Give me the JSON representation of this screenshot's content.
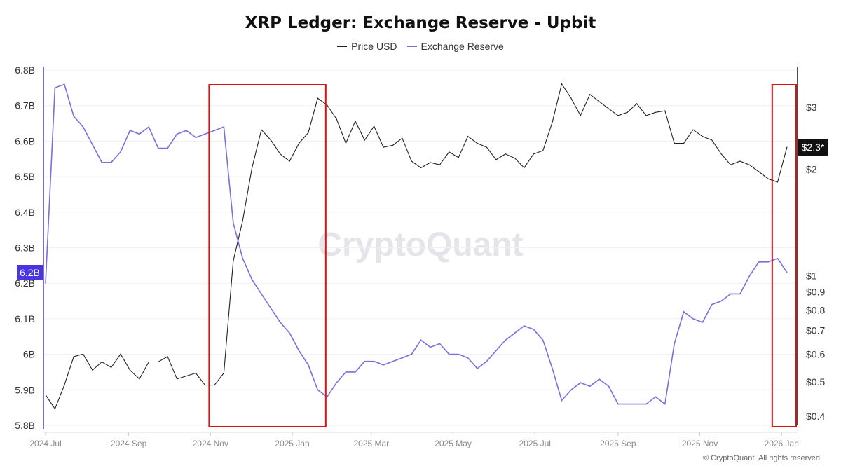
{
  "chart_data": {
    "type": "line",
    "title": "XRP Ledger: Exchange Reserve - Upbit",
    "watermark": "CryptoQuant",
    "copyright": "© CryptoQuant. All rights reserved",
    "legend_position": "top-center",
    "grid": true,
    "x": [
      "2024-07-01",
      "2024-07-08",
      "2024-07-15",
      "2024-07-22",
      "2024-07-29",
      "2024-08-05",
      "2024-08-12",
      "2024-08-19",
      "2024-08-26",
      "2024-09-02",
      "2024-09-09",
      "2024-09-16",
      "2024-09-23",
      "2024-09-30",
      "2024-10-07",
      "2024-10-14",
      "2024-10-21",
      "2024-10-28",
      "2024-11-04",
      "2024-11-11",
      "2024-11-18",
      "2024-11-25",
      "2024-12-02",
      "2024-12-09",
      "2024-12-16",
      "2024-12-23",
      "2024-12-30",
      "2025-01-06",
      "2025-01-13",
      "2025-01-20",
      "2025-01-27",
      "2025-02-03",
      "2025-02-10",
      "2025-02-17",
      "2025-02-24",
      "2025-03-03",
      "2025-03-10",
      "2025-03-17",
      "2025-03-24",
      "2025-03-31",
      "2025-04-07",
      "2025-04-14",
      "2025-04-21",
      "2025-04-28",
      "2025-05-05",
      "2025-05-12",
      "2025-05-19",
      "2025-05-26",
      "2025-06-02",
      "2025-06-09",
      "2025-06-16",
      "2025-06-23",
      "2025-06-30",
      "2025-07-07",
      "2025-07-14",
      "2025-07-21",
      "2025-07-28",
      "2025-08-04",
      "2025-08-11",
      "2025-08-18",
      "2025-08-25",
      "2025-09-01",
      "2025-09-08",
      "2025-09-15",
      "2025-09-22",
      "2025-09-29",
      "2025-10-06",
      "2025-10-13",
      "2025-10-20",
      "2025-10-27",
      "2025-11-03",
      "2025-11-10",
      "2025-11-17",
      "2025-11-24",
      "2025-12-01",
      "2025-12-08",
      "2025-12-15",
      "2025-12-22",
      "2025-12-29",
      "2026-01-05"
    ],
    "series": [
      {
        "name": "Price USD",
        "axis": "right",
        "color": "#222222",
        "values": [
          0.46,
          0.42,
          0.49,
          0.59,
          0.6,
          0.54,
          0.57,
          0.55,
          0.6,
          0.54,
          0.51,
          0.57,
          0.57,
          0.59,
          0.51,
          0.52,
          0.53,
          0.49,
          0.49,
          0.53,
          1.1,
          1.43,
          2.02,
          2.59,
          2.42,
          2.21,
          2.11,
          2.37,
          2.54,
          3.18,
          3.04,
          2.78,
          2.37,
          2.74,
          2.42,
          2.65,
          2.31,
          2.34,
          2.45,
          2.11,
          2.02,
          2.09,
          2.06,
          2.24,
          2.16,
          2.48,
          2.37,
          2.31,
          2.13,
          2.21,
          2.15,
          2.02,
          2.21,
          2.26,
          2.72,
          3.49,
          3.18,
          2.84,
          3.26,
          3.11,
          2.97,
          2.84,
          2.9,
          3.07,
          2.84,
          2.9,
          2.93,
          2.37,
          2.37,
          2.59,
          2.48,
          2.42,
          2.21,
          2.06,
          2.11,
          2.06,
          1.97,
          1.88,
          1.84,
          2.31
        ]
      },
      {
        "name": "Exchange Reserve",
        "axis": "left",
        "color": "#7b6fdc",
        "values": [
          6.2,
          6.75,
          6.76,
          6.67,
          6.64,
          6.59,
          6.54,
          6.54,
          6.57,
          6.63,
          6.62,
          6.64,
          6.58,
          6.58,
          6.62,
          6.63,
          6.61,
          6.62,
          6.63,
          6.64,
          6.37,
          6.27,
          6.21,
          6.17,
          6.13,
          6.09,
          6.06,
          6.01,
          5.97,
          5.9,
          5.88,
          5.92,
          5.95,
          5.95,
          5.98,
          5.98,
          5.97,
          5.98,
          5.99,
          6.0,
          6.04,
          6.02,
          6.03,
          6.0,
          6.0,
          5.99,
          5.96,
          5.98,
          6.01,
          6.04,
          6.06,
          6.08,
          6.07,
          6.04,
          5.96,
          5.87,
          5.9,
          5.92,
          5.91,
          5.93,
          5.91,
          5.86,
          5.86,
          5.86,
          5.86,
          5.88,
          5.86,
          6.03,
          6.12,
          6.1,
          6.09,
          6.14,
          6.15,
          6.17,
          6.17,
          6.22,
          6.26,
          6.26,
          6.27,
          6.23
        ]
      }
    ],
    "left_axis": {
      "min": 5.8,
      "max": 6.8,
      "ticks": [
        "6.8B",
        "6.7B",
        "6.6B",
        "6.5B",
        "6.4B",
        "6.3B",
        "6.2B",
        "6.1B",
        "6B",
        "5.9B",
        "5.8B"
      ],
      "tick_values": [
        6.8,
        6.7,
        6.6,
        6.5,
        6.4,
        6.3,
        6.2,
        6.1,
        6.0,
        5.9,
        5.8
      ],
      "current_label": "6.2B",
      "current_value": 6.23,
      "color": "#7b6fdc",
      "badge_color": "#4a36e0"
    },
    "right_axis": {
      "scale": "log",
      "min": 0.377,
      "max": 3.82,
      "ticks": [
        "$3",
        "$2",
        "$1",
        "$0.9",
        "$0.8",
        "$0.7",
        "$0.6",
        "$0.5",
        "$0.4"
      ],
      "tick_values": [
        3,
        2,
        1,
        0.9,
        0.8,
        0.7,
        0.6,
        0.5,
        0.4
      ],
      "current_label": "$2.3*",
      "current_value": 2.31,
      "badge_color": "#111111"
    },
    "x_ticks": [
      {
        "label": "2024 Jul",
        "date": "2024-07-01"
      },
      {
        "label": "2024 Sep",
        "date": "2024-09-01"
      },
      {
        "label": "2024 Nov",
        "date": "2024-11-01"
      },
      {
        "label": "2025 Jan",
        "date": "2025-01-01"
      },
      {
        "label": "2025 Mar",
        "date": "2025-03-01"
      },
      {
        "label": "2025 May",
        "date": "2025-05-01"
      },
      {
        "label": "2025 Jul",
        "date": "2025-07-01"
      },
      {
        "label": "2025 Sep",
        "date": "2025-09-01"
      },
      {
        "label": "2025 Nov",
        "date": "2025-11-01"
      },
      {
        "label": "2026 Jan",
        "date": "2026-01-01"
      }
    ],
    "highlights": [
      {
        "start": "2024-10-31",
        "end": "2025-01-26",
        "color": "#e01010"
      },
      {
        "start": "2025-12-25",
        "end": "2026-01-12",
        "color": "#e01010"
      }
    ]
  }
}
